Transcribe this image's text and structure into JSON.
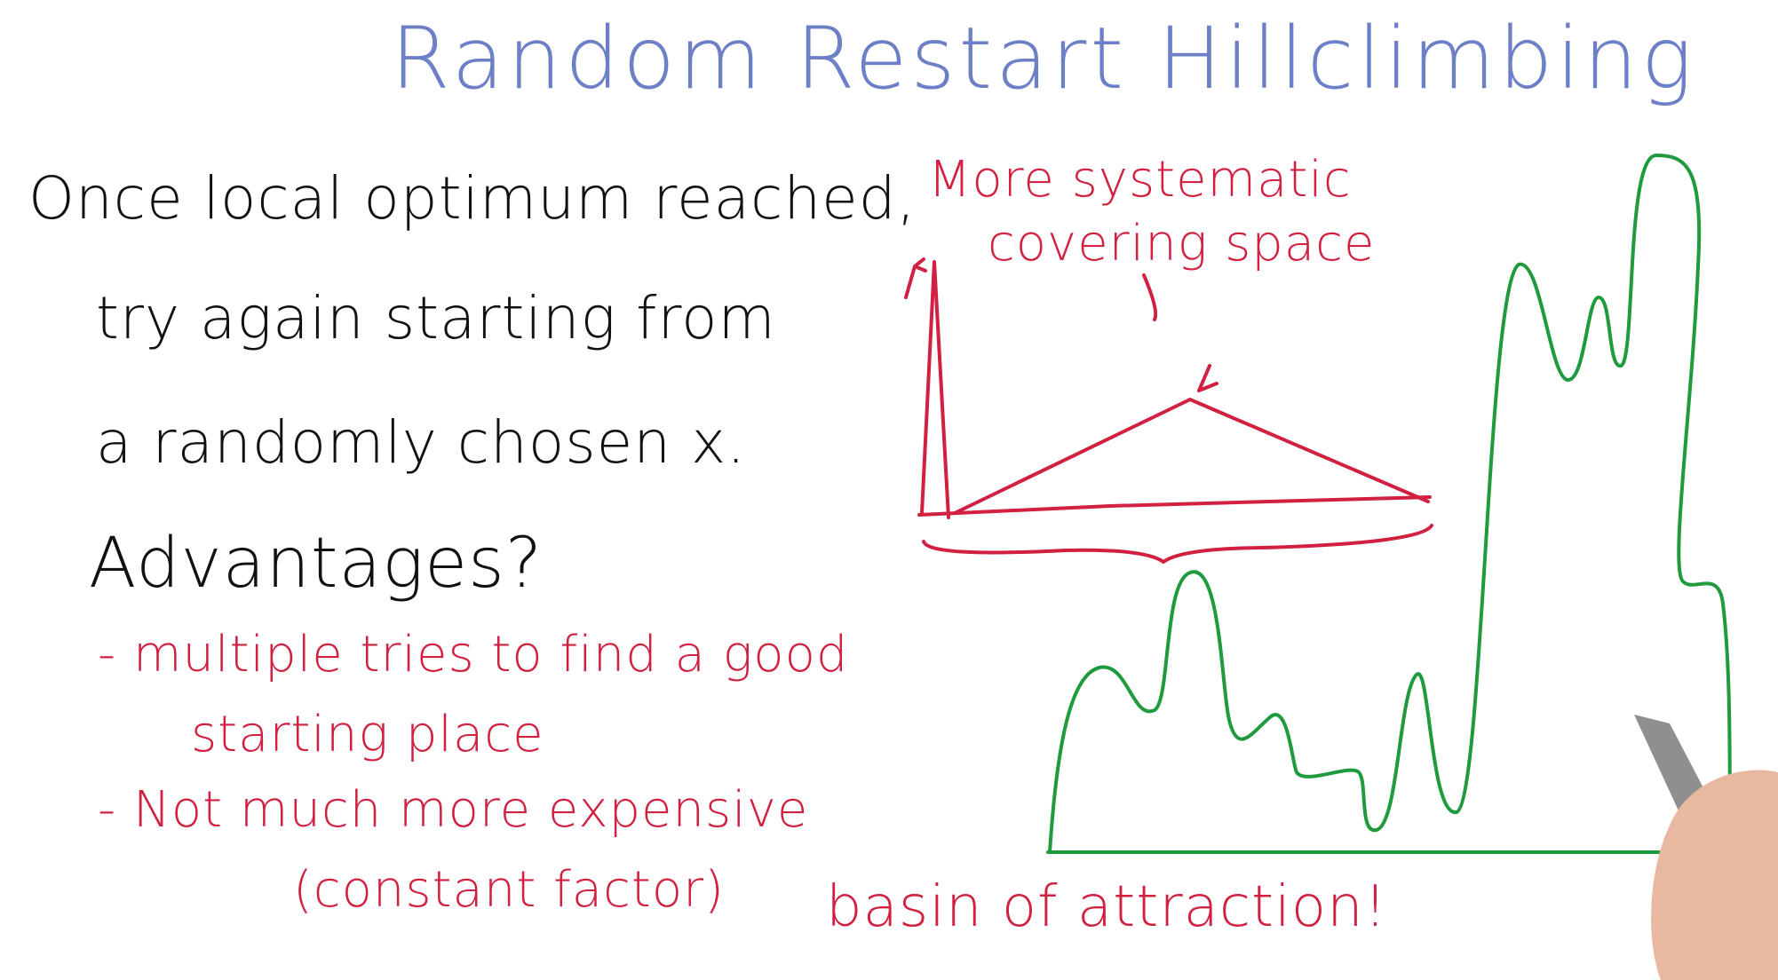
{
  "colors": {
    "title": "#6d7fc7",
    "ink": "#111111",
    "red": "#d12040",
    "green": "#1f9a3c",
    "hand": "#e8b9a0",
    "pen": "#8f8f8f"
  },
  "title": "Random Restart Hillclimbing",
  "black_text": {
    "line1": "Once local optimum reached,",
    "line2": "try again starting from",
    "line3": "a randomly chosen x.",
    "advantages": "Advantages?"
  },
  "advantages": [
    {
      "line1": "- multiple tries to find a good",
      "line2": "starting place"
    },
    {
      "line1": "- Not much more expensive",
      "line2": "(constant factor)"
    }
  ],
  "annotations": {
    "systematic_line1": "More systematic",
    "systematic_line2": "covering space",
    "basin": "basin of attraction!"
  },
  "icons": [
    "hand-icon",
    "pen-icon"
  ]
}
